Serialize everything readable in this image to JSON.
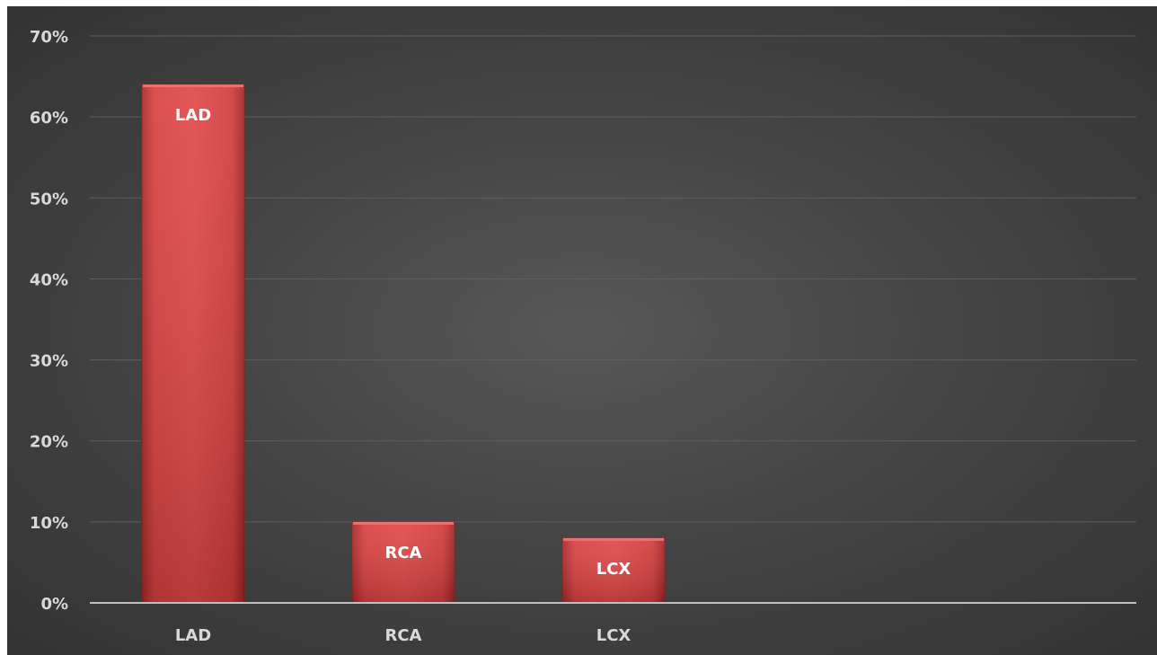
{
  "chart_data": {
    "type": "bar",
    "categories": [
      "LAD",
      "RCA",
      "LCX"
    ],
    "values": [
      64,
      10,
      8
    ],
    "data_labels": [
      "LAD",
      "RCA",
      "LCX"
    ],
    "ylim": [
      0,
      70
    ],
    "y_ticks": [
      "0%",
      "10%",
      "20%",
      "30%",
      "40%",
      "50%",
      "60%",
      "70%"
    ],
    "grid": true,
    "legend": "none",
    "colors": {
      "bar": "#d94040",
      "bar_edge": "#f07070",
      "background": "#474747",
      "text": "#d9d9d9"
    }
  }
}
